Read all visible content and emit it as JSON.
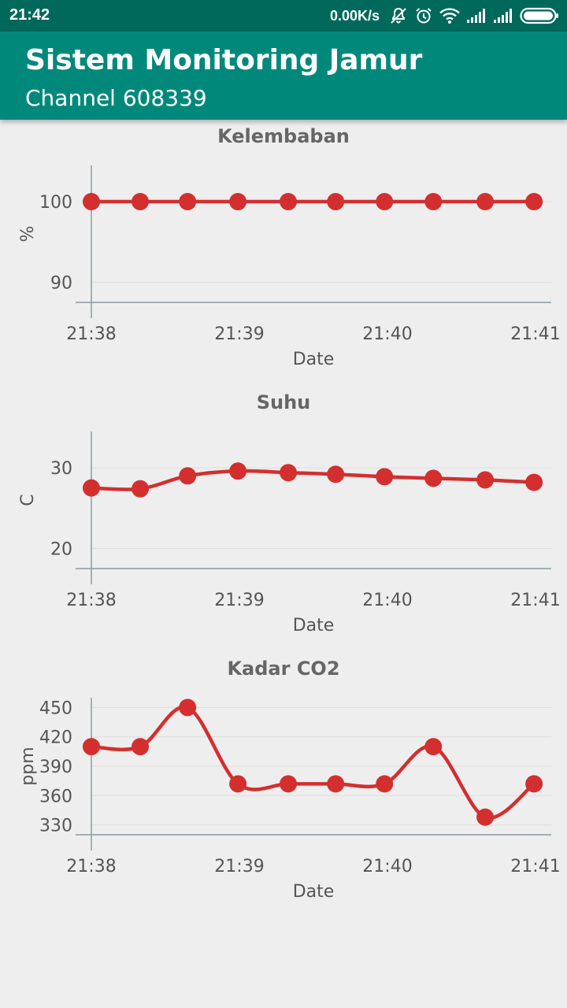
{
  "status_bar": {
    "time": "21:42",
    "net_speed": "0.00K/s",
    "icons": [
      "notification-muted-icon",
      "alarm-icon",
      "wifi-icon",
      "signal-icon",
      "signal-icon",
      "battery-icon"
    ]
  },
  "app_bar": {
    "title": "Sistem Monitoring Jamur",
    "subtitle": "Channel 608339"
  },
  "colors": {
    "status_bar": "#00695c",
    "app_bar": "#00897b",
    "series": "#d32f2f",
    "background": "#eeeeee"
  },
  "chart_data": [
    {
      "type": "line",
      "title": "Kelembaban",
      "xlabel": "Date",
      "ylabel": "%",
      "x_ticks": [
        "21:38",
        "21:39",
        "21:40",
        "21:41"
      ],
      "x_tick_positions": [
        0,
        1,
        2,
        3
      ],
      "x": [
        0,
        0.33,
        0.65,
        0.99,
        1.33,
        1.65,
        1.98,
        2.31,
        2.66,
        2.99
      ],
      "y_ticks": [
        90,
        100
      ],
      "ylim": [
        87.5,
        104.5
      ],
      "values": [
        100,
        100,
        100,
        100,
        100,
        100,
        100,
        100,
        100,
        100
      ]
    },
    {
      "type": "line",
      "title": "Suhu",
      "xlabel": "Date",
      "ylabel": "C",
      "x_ticks": [
        "21:38",
        "21:39",
        "21:40",
        "21:41"
      ],
      "x_tick_positions": [
        0,
        1,
        2,
        3
      ],
      "x": [
        0,
        0.33,
        0.65,
        0.99,
        1.33,
        1.65,
        1.98,
        2.31,
        2.66,
        2.99
      ],
      "y_ticks": [
        20,
        30
      ],
      "ylim": [
        17.5,
        34.5
      ],
      "values": [
        27.5,
        27.4,
        29.0,
        29.6,
        29.4,
        29.2,
        28.9,
        28.7,
        28.5,
        28.2
      ]
    },
    {
      "type": "line",
      "title": "Kadar CO2",
      "xlabel": "Date",
      "ylabel": "ppm",
      "x_ticks": [
        "21:38",
        "21:39",
        "21:40",
        "21:41"
      ],
      "x_tick_positions": [
        0,
        1,
        2,
        3
      ],
      "x": [
        0,
        0.33,
        0.65,
        0.99,
        1.33,
        1.65,
        1.98,
        2.31,
        2.66,
        2.99
      ],
      "y_ticks": [
        330,
        360,
        390,
        420,
        450
      ],
      "ylim": [
        320,
        460
      ],
      "values": [
        410,
        410,
        450,
        372,
        372,
        372,
        372,
        410,
        338,
        372
      ]
    }
  ]
}
